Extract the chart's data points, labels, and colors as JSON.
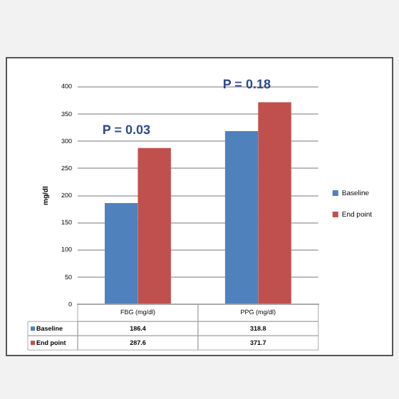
{
  "chart_data": {
    "type": "bar",
    "categories": [
      "FBG (mg/dl)",
      "PPG (mg/dl)"
    ],
    "series": [
      {
        "name": "Baseline",
        "color": "#4f81bd",
        "values": [
          186.4,
          318.8
        ]
      },
      {
        "name": "End point",
        "color": "#c0504d",
        "values": [
          287.6,
          371.7
        ]
      }
    ],
    "ylabel": "mg/dl",
    "ylim": [
      0,
      400
    ],
    "yticks": [
      0,
      50,
      100,
      150,
      200,
      250,
      300,
      350,
      400
    ],
    "grid": "y",
    "legend": "right",
    "data_labels": true,
    "annotations": [
      "P = 0.03",
      "P = 0.18"
    ]
  }
}
